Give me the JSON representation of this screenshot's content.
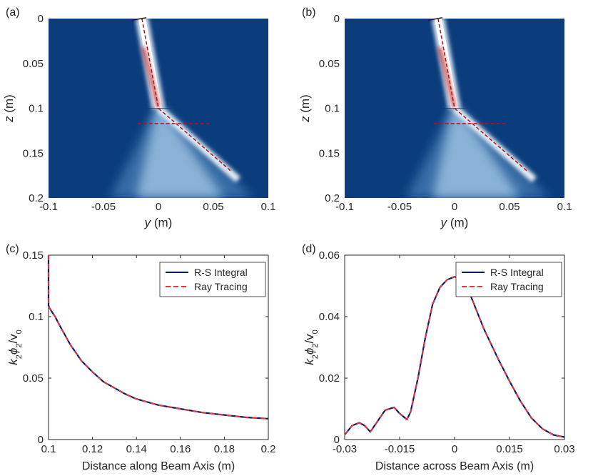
{
  "colors": {
    "field_background": "#0b3d7c",
    "beam_white": "#ffffff",
    "beam_red": "#b4121a",
    "ray_dashed": "#b01818",
    "rs_line": "#0b1e62",
    "rt_line": "#e8323e",
    "axis": "#262626"
  },
  "chart_data": [
    {
      "id": "a",
      "panel_label": "(a)",
      "type": "heatmap",
      "description_tag": "beam field map",
      "xlabel_var": "y",
      "xlabel_unit": "(m)",
      "ylabel_var": "z",
      "ylabel_unit": "(m)",
      "xlim": [
        -0.1,
        0.1
      ],
      "ylim": [
        0,
        0.2
      ],
      "y_reversed": true,
      "xticks": [
        -0.1,
        -0.05,
        0,
        0.05,
        0.1
      ],
      "xtick_labels": [
        "-0.1",
        "-0.05",
        "0",
        "0.05",
        "0.1"
      ],
      "yticks": [
        0,
        0.05,
        0.1,
        0.15,
        0.2
      ],
      "ytick_labels": [
        "0",
        "0.05",
        "0.1",
        "0.15",
        "0.2"
      ],
      "interface_z": 0.1,
      "ray_paths": [
        {
          "name": "refracted ray",
          "points": [
            [
              -0.015,
              0
            ],
            [
              0,
              0.1
            ],
            [
              0.066,
              0.17
            ]
          ]
        },
        {
          "name": "ray normal",
          "points": [
            [
              -0.019,
              0.117
            ],
            [
              0.048,
              0.117
            ]
          ]
        }
      ],
      "transducer": {
        "points": [
          [
            -0.024,
            0.001
          ],
          [
            -0.011,
            -0.001
          ]
        ]
      }
    },
    {
      "id": "b",
      "panel_label": "(b)",
      "type": "heatmap",
      "description_tag": "beam field map",
      "xlabel_var": "y",
      "xlabel_unit": "(m)",
      "ylabel_var": "z",
      "ylabel_unit": "(m)",
      "xlim": [
        -0.1,
        0.1
      ],
      "ylim": [
        0,
        0.2
      ],
      "y_reversed": true,
      "xticks": [
        -0.1,
        -0.05,
        0,
        0.05,
        0.1
      ],
      "xtick_labels": [
        "-0.1",
        "-0.05",
        "0",
        "0.05",
        "0.1"
      ],
      "yticks": [
        0,
        0.05,
        0.1,
        0.15,
        0.2
      ],
      "ytick_labels": [
        "0",
        "0.05",
        "0.1",
        "0.15",
        "0.2"
      ],
      "interface_z": 0.1,
      "ray_paths": [
        {
          "name": "refracted ray",
          "points": [
            [
              -0.015,
              0
            ],
            [
              0,
              0.1
            ],
            [
              0.066,
              0.17
            ]
          ]
        },
        {
          "name": "ray normal",
          "points": [
            [
              -0.019,
              0.117
            ],
            [
              0.048,
              0.117
            ]
          ]
        }
      ],
      "transducer": {
        "points": [
          [
            -0.024,
            0.001
          ],
          [
            -0.011,
            -0.001
          ]
        ]
      }
    },
    {
      "id": "c",
      "panel_label": "(c)",
      "type": "line",
      "xlabel": "Distance along Beam Axis (m)",
      "ylabel_k": "k",
      "ylabel_k_sub": "2",
      "ylabel_phi": "ϕ",
      "ylabel_phi_sub": "2",
      "ylabel_v": "/v",
      "ylabel_v_sub": "0",
      "xlim": [
        0.1,
        0.2
      ],
      "ylim": [
        0,
        0.15
      ],
      "xticks": [
        0.1,
        0.12,
        0.14,
        0.16,
        0.18,
        0.2
      ],
      "xtick_labels": [
        "0.1",
        "0.12",
        "0.14",
        "0.16",
        "0.18",
        "0.2"
      ],
      "yticks": [
        0,
        0.05,
        0.1,
        0.15
      ],
      "ytick_labels": [
        "0",
        "0.05",
        "0.1",
        "0.15"
      ],
      "legend_position": "top-right",
      "series": [
        {
          "name": "R-S Integral",
          "style": "solid",
          "x": [
            0.1,
            0.1,
            0.1,
            0.1,
            0.1005,
            0.1015,
            0.103,
            0.105,
            0.11,
            0.115,
            0.12,
            0.125,
            0.13,
            0.135,
            0.14,
            0.15,
            0.16,
            0.17,
            0.18,
            0.19,
            0.2
          ],
          "y": [
            0.15,
            0.13,
            0.115,
            0.109,
            0.107,
            0.104,
            0.1,
            0.093,
            0.077,
            0.064,
            0.055,
            0.047,
            0.042,
            0.037,
            0.033,
            0.028,
            0.025,
            0.022,
            0.02,
            0.018,
            0.017
          ]
        },
        {
          "name": "Ray Tracing",
          "style": "dashed",
          "x": [
            0.1,
            0.1,
            0.1,
            0.1,
            0.1005,
            0.1015,
            0.103,
            0.105,
            0.11,
            0.115,
            0.12,
            0.125,
            0.13,
            0.135,
            0.14,
            0.15,
            0.16,
            0.17,
            0.18,
            0.19,
            0.2
          ],
          "y": [
            0.15,
            0.13,
            0.115,
            0.109,
            0.107,
            0.104,
            0.1,
            0.093,
            0.077,
            0.064,
            0.055,
            0.047,
            0.042,
            0.037,
            0.033,
            0.028,
            0.025,
            0.022,
            0.02,
            0.018,
            0.017
          ]
        }
      ]
    },
    {
      "id": "d",
      "panel_label": "(d)",
      "type": "line",
      "xlabel": "Distance across Beam Axis (m)",
      "ylabel_k": "k",
      "ylabel_k_sub": "2",
      "ylabel_phi": "ϕ",
      "ylabel_phi_sub": "2",
      "ylabel_v": "/v",
      "ylabel_v_sub": "0",
      "xlim": [
        -0.03,
        0.03
      ],
      "ylim": [
        0,
        0.06
      ],
      "xticks": [
        -0.03,
        -0.015,
        0,
        0.015,
        0.03
      ],
      "xtick_labels": [
        "-0.03",
        "-0.015",
        "0",
        "0.015",
        "0.03"
      ],
      "yticks": [
        0,
        0.02,
        0.04,
        0.06
      ],
      "ytick_labels": [
        "0",
        "0.02",
        "0.04",
        "0.06"
      ],
      "legend_position": "top-right",
      "series": [
        {
          "name": "R-S Integral",
          "style": "solid",
          "x": [
            -0.03,
            -0.028,
            -0.026,
            -0.0245,
            -0.023,
            -0.021,
            -0.019,
            -0.0165,
            -0.015,
            -0.013,
            -0.012,
            -0.01,
            -0.008,
            -0.006,
            -0.004,
            -0.002,
            0,
            0.002,
            0.004,
            0.006,
            0.008,
            0.01,
            0.012,
            0.015,
            0.018,
            0.021,
            0.024,
            0.027,
            0.03
          ],
          "y": [
            0.0015,
            0.0045,
            0.0055,
            0.0045,
            0.0025,
            0.006,
            0.0095,
            0.0105,
            0.0085,
            0.0065,
            0.009,
            0.02,
            0.033,
            0.044,
            0.0495,
            0.052,
            0.053,
            0.052,
            0.048,
            0.042,
            0.036,
            0.031,
            0.026,
            0.019,
            0.0125,
            0.007,
            0.0035,
            0.0015,
            0.0008
          ]
        },
        {
          "name": "Ray Tracing",
          "style": "dashed",
          "x": [
            -0.03,
            -0.028,
            -0.026,
            -0.0245,
            -0.023,
            -0.021,
            -0.019,
            -0.0165,
            -0.015,
            -0.013,
            -0.012,
            -0.01,
            -0.008,
            -0.006,
            -0.004,
            -0.002,
            0,
            0.002,
            0.004,
            0.006,
            0.008,
            0.01,
            0.012,
            0.015,
            0.018,
            0.021,
            0.024,
            0.027,
            0.03
          ],
          "y": [
            0.0015,
            0.0045,
            0.0055,
            0.0045,
            0.0025,
            0.006,
            0.0095,
            0.0105,
            0.0085,
            0.0065,
            0.009,
            0.02,
            0.033,
            0.044,
            0.0495,
            0.052,
            0.053,
            0.052,
            0.048,
            0.042,
            0.036,
            0.031,
            0.026,
            0.019,
            0.0125,
            0.007,
            0.0035,
            0.0015,
            0.0008
          ]
        }
      ]
    }
  ]
}
